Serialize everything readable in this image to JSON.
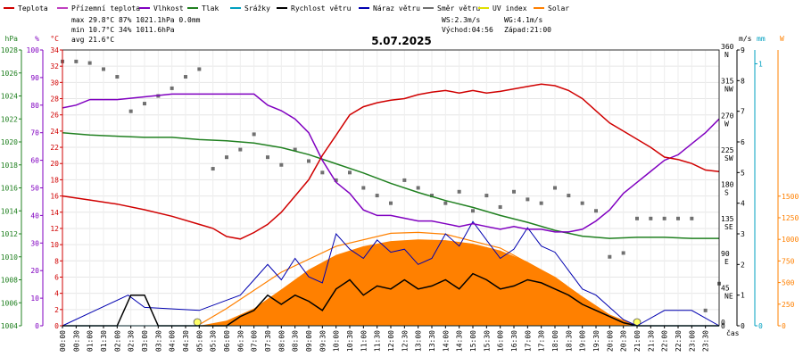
{
  "chart_data": {
    "type": "line",
    "title": "5.07.2025",
    "xlabel": "čas",
    "legend": [
      {
        "name": "Teplota",
        "color": "#d00000"
      },
      {
        "name": "Přízemní teplota",
        "color": "#c040c0"
      },
      {
        "name": "Vlhkost",
        "color": "#8000c0"
      },
      {
        "name": "Tlak",
        "color": "#208020"
      },
      {
        "name": "Srážky",
        "color": "#00a0c0"
      },
      {
        "name": "Rychlost větru",
        "color": "#000000"
      },
      {
        "name": "Náraz větru",
        "color": "#0000b0"
      },
      {
        "name": "Směr větru",
        "color": "#707070"
      },
      {
        "name": "UV index",
        "color": "#e0e000"
      },
      {
        "name": "Solar",
        "color": "#ff8000"
      }
    ],
    "stats": {
      "max_line": "max 29.8°C  87%  1021.1hPa   0.0mm",
      "min_line": "min 10.7°C  34%  1011.6hPa",
      "avg_line": "avg 21.6°C",
      "ws": "WS:2.3m/s",
      "wg": "WG:4.1m/s",
      "sunrise": "Východ:04:56",
      "sunset": "Západ:21:00"
    },
    "axes": {
      "hpa": {
        "label": "hPa",
        "ticks": [
          "1028",
          "1026",
          "1024",
          "1022",
          "1020",
          "1018",
          "1016",
          "1014",
          "1012",
          "1010",
          "1008",
          "1006",
          "1004"
        ]
      },
      "pct": {
        "label": "%",
        "ticks": [
          "100",
          "90",
          "80",
          "70",
          "60",
          "50",
          "40",
          "30",
          "20",
          "10",
          "0"
        ]
      },
      "degc": {
        "label": "°C",
        "ticks": [
          "34",
          "32",
          "30",
          "28",
          "26",
          "24",
          "22",
          "20",
          "18",
          "16",
          "14",
          "12",
          "10",
          "8",
          "6",
          "4",
          "2",
          "0"
        ]
      },
      "ms": {
        "label": "m/s",
        "ticks": [
          "9",
          "8",
          "7",
          "6",
          "5",
          "4",
          "3",
          "2",
          "1",
          "0"
        ]
      },
      "mm": {
        "label": "mm",
        "ticks": [
          "1",
          "0"
        ]
      },
      "w": {
        "label": "W",
        "ticks": [
          "1500",
          "1250",
          "1000",
          "750",
          "500",
          "250",
          "0"
        ]
      },
      "dir": {
        "ticks": [
          "360",
          "N",
          "315",
          "NW",
          "270",
          "W",
          "225",
          "SW",
          "180",
          "S",
          "135",
          "SE",
          "90",
          "E",
          "45",
          "NE",
          "0"
        ]
      }
    },
    "x_ticks": [
      "00:00",
      "00:30",
      "01:00",
      "01:30",
      "02:00",
      "02:30",
      "03:00",
      "03:30",
      "04:00",
      "04:30",
      "05:00",
      "05:30",
      "06:00",
      "06:30",
      "07:00",
      "07:30",
      "08:00",
      "08:30",
      "09:00",
      "09:30",
      "10:00",
      "10:30",
      "11:00",
      "11:30",
      "12:00",
      "12:30",
      "13:00",
      "13:30",
      "14:00",
      "14:30",
      "15:00",
      "15:30",
      "16:00",
      "16:30",
      "17:00",
      "17:30",
      "18:00",
      "18:30",
      "19:00",
      "19:30",
      "20:00",
      "20:30",
      "21:00",
      "21:30",
      "22:00",
      "22:30",
      "23:00",
      "23:30"
    ],
    "x_range_hours": [
      0,
      24
    ],
    "temp_c": [
      [
        0,
        16
      ],
      [
        1,
        15.5
      ],
      [
        2,
        15
      ],
      [
        3,
        14.3
      ],
      [
        4,
        13.5
      ],
      [
        5,
        12.5
      ],
      [
        5.5,
        12
      ],
      [
        6,
        11
      ],
      [
        6.5,
        10.7
      ],
      [
        7,
        11.5
      ],
      [
        7.5,
        12.5
      ],
      [
        8,
        14
      ],
      [
        8.5,
        16
      ],
      [
        9,
        18
      ],
      [
        9.5,
        21
      ],
      [
        10,
        23.5
      ],
      [
        10.5,
        26
      ],
      [
        11,
        27
      ],
      [
        11.5,
        27.5
      ],
      [
        12,
        27.8
      ],
      [
        12.5,
        28
      ],
      [
        13,
        28.5
      ],
      [
        13.5,
        28.8
      ],
      [
        14,
        29
      ],
      [
        14.5,
        28.7
      ],
      [
        15,
        29
      ],
      [
        15.5,
        28.7
      ],
      [
        16,
        28.9
      ],
      [
        16.5,
        29.2
      ],
      [
        17,
        29.5
      ],
      [
        17.5,
        29.8
      ],
      [
        18,
        29.6
      ],
      [
        18.5,
        29
      ],
      [
        19,
        28
      ],
      [
        19.5,
        26.5
      ],
      [
        20,
        25
      ],
      [
        20.5,
        24
      ],
      [
        21,
        23
      ],
      [
        21.5,
        22
      ],
      [
        22,
        20.8
      ],
      [
        22.5,
        20.5
      ],
      [
        23,
        20
      ],
      [
        23.5,
        19.2
      ],
      [
        24,
        19
      ]
    ],
    "humidity_pct": [
      [
        0,
        79
      ],
      [
        0.5,
        80
      ],
      [
        1,
        82
      ],
      [
        2,
        82
      ],
      [
        3,
        83
      ],
      [
        4,
        84
      ],
      [
        5,
        84
      ],
      [
        6,
        84
      ],
      [
        7,
        84
      ],
      [
        7.5,
        80
      ],
      [
        8,
        78
      ],
      [
        8.5,
        75
      ],
      [
        9,
        70
      ],
      [
        9.5,
        60
      ],
      [
        10,
        52
      ],
      [
        10.5,
        48
      ],
      [
        11,
        42
      ],
      [
        11.5,
        40
      ],
      [
        12,
        40
      ],
      [
        12.5,
        39
      ],
      [
        13,
        38
      ],
      [
        13.5,
        38
      ],
      [
        14,
        37
      ],
      [
        14.5,
        36
      ],
      [
        15,
        37
      ],
      [
        15.5,
        36
      ],
      [
        16,
        35
      ],
      [
        16.5,
        36
      ],
      [
        17,
        35
      ],
      [
        17.5,
        35
      ],
      [
        18,
        34
      ],
      [
        18.5,
        34
      ],
      [
        19,
        35
      ],
      [
        19.5,
        38
      ],
      [
        20,
        42
      ],
      [
        20.5,
        48
      ],
      [
        21,
        52
      ],
      [
        21.5,
        56
      ],
      [
        22,
        60
      ],
      [
        22.5,
        62
      ],
      [
        23,
        66
      ],
      [
        23.5,
        70
      ],
      [
        24,
        75
      ]
    ],
    "pressure_hpa": [
      [
        0,
        1020.8
      ],
      [
        1,
        1020.6
      ],
      [
        2,
        1020.5
      ],
      [
        3,
        1020.4
      ],
      [
        4,
        1020.4
      ],
      [
        5,
        1020.2
      ],
      [
        6,
        1020.1
      ],
      [
        7,
        1019.9
      ],
      [
        8,
        1019.5
      ],
      [
        9,
        1018.9
      ],
      [
        10,
        1018.1
      ],
      [
        11,
        1017.3
      ],
      [
        12,
        1016.4
      ],
      [
        13,
        1015.6
      ],
      [
        14,
        1014.9
      ],
      [
        15,
        1014.3
      ],
      [
        16,
        1013.6
      ],
      [
        17,
        1013
      ],
      [
        18,
        1012.3
      ],
      [
        19,
        1011.8
      ],
      [
        20,
        1011.6
      ],
      [
        21,
        1011.7
      ],
      [
        22,
        1011.7
      ],
      [
        23,
        1011.6
      ],
      [
        24,
        1011.6
      ]
    ],
    "wind_speed_ms": [
      [
        0,
        0
      ],
      [
        1,
        0
      ],
      [
        1.5,
        0
      ],
      [
        2,
        0
      ],
      [
        2.5,
        1
      ],
      [
        3,
        1
      ],
      [
        3.5,
        0
      ],
      [
        4,
        0
      ],
      [
        5,
        0
      ],
      [
        5.5,
        0
      ],
      [
        6,
        0
      ],
      [
        6.5,
        0.3
      ],
      [
        7,
        0.5
      ],
      [
        7.5,
        1
      ],
      [
        8,
        0.7
      ],
      [
        8.5,
        1
      ],
      [
        9,
        0.8
      ],
      [
        9.5,
        0.5
      ],
      [
        10,
        1.2
      ],
      [
        10.5,
        1.5
      ],
      [
        11,
        1
      ],
      [
        11.5,
        1.3
      ],
      [
        12,
        1.2
      ],
      [
        12.5,
        1.5
      ],
      [
        13,
        1.2
      ],
      [
        13.5,
        1.3
      ],
      [
        14,
        1.5
      ],
      [
        14.5,
        1.2
      ],
      [
        15,
        1.7
      ],
      [
        15.5,
        1.5
      ],
      [
        16,
        1.2
      ],
      [
        16.5,
        1.3
      ],
      [
        17,
        1.5
      ],
      [
        17.5,
        1.4
      ],
      [
        18,
        1.2
      ],
      [
        18.5,
        1
      ],
      [
        19,
        0.7
      ],
      [
        19.5,
        0.5
      ],
      [
        20,
        0.3
      ],
      [
        20.5,
        0.1
      ],
      [
        21,
        0
      ],
      [
        22,
        0
      ],
      [
        23,
        0
      ],
      [
        24,
        0
      ]
    ],
    "wind_gust_ms": [
      [
        0,
        0
      ],
      [
        1.2,
        0.5
      ],
      [
        2.4,
        1
      ],
      [
        3,
        0.6
      ],
      [
        5,
        0.5
      ],
      [
        6.5,
        1
      ],
      [
        7,
        1.5
      ],
      [
        7.5,
        2
      ],
      [
        8,
        1.5
      ],
      [
        8.5,
        2.2
      ],
      [
        9,
        1.6
      ],
      [
        9.5,
        1.4
      ],
      [
        10,
        3
      ],
      [
        10.5,
        2.5
      ],
      [
        11,
        2.2
      ],
      [
        11.5,
        2.8
      ],
      [
        12,
        2.4
      ],
      [
        12.5,
        2.5
      ],
      [
        13,
        2
      ],
      [
        13.5,
        2.2
      ],
      [
        14,
        3
      ],
      [
        14.5,
        2.6
      ],
      [
        15,
        3.4
      ],
      [
        15.5,
        2.8
      ],
      [
        16,
        2.2
      ],
      [
        16.5,
        2.5
      ],
      [
        17,
        3.2
      ],
      [
        17.5,
        2.6
      ],
      [
        18,
        2.4
      ],
      [
        18.5,
        1.8
      ],
      [
        19,
        1.2
      ],
      [
        19.5,
        1
      ],
      [
        20,
        0.6
      ],
      [
        20.5,
        0.2
      ],
      [
        21,
        0
      ],
      [
        22,
        0.5
      ],
      [
        23,
        0.5
      ],
      [
        24,
        0
      ]
    ],
    "wind_dir_deg": [
      [
        0,
        345
      ],
      [
        0.5,
        345
      ],
      [
        1,
        343
      ],
      [
        1.5,
        335
      ],
      [
        2,
        325
      ],
      [
        2.5,
        280
      ],
      [
        3,
        290
      ],
      [
        3.5,
        300
      ],
      [
        4,
        310
      ],
      [
        4.5,
        325
      ],
      [
        5,
        335
      ],
      [
        5.5,
        205
      ],
      [
        6,
        220
      ],
      [
        6.5,
        230
      ],
      [
        7,
        250
      ],
      [
        7.5,
        220
      ],
      [
        8,
        210
      ],
      [
        8.5,
        230
      ],
      [
        9,
        215
      ],
      [
        9.5,
        200
      ],
      [
        10,
        190
      ],
      [
        10.5,
        200
      ],
      [
        11,
        180
      ],
      [
        11.5,
        170
      ],
      [
        12,
        160
      ],
      [
        12.5,
        190
      ],
      [
        13,
        180
      ],
      [
        13.5,
        170
      ],
      [
        14,
        160
      ],
      [
        14.5,
        175
      ],
      [
        15,
        150
      ],
      [
        15.5,
        170
      ],
      [
        16,
        155
      ],
      [
        16.5,
        175
      ],
      [
        17,
        165
      ],
      [
        17.5,
        160
      ],
      [
        18,
        180
      ],
      [
        18.5,
        170
      ],
      [
        19,
        160
      ],
      [
        19.5,
        150
      ],
      [
        20,
        90
      ],
      [
        20.5,
        95
      ],
      [
        21,
        140
      ],
      [
        21.5,
        140
      ],
      [
        22,
        140
      ],
      [
        22.5,
        140
      ],
      [
        23,
        140
      ],
      [
        23.5,
        20
      ],
      [
        24,
        55
      ]
    ],
    "solar_w_m2": [
      [
        5,
        0
      ],
      [
        6,
        60
      ],
      [
        7,
        200
      ],
      [
        8,
        420
      ],
      [
        9,
        650
      ],
      [
        10,
        820
      ],
      [
        11,
        920
      ],
      [
        12,
        980
      ],
      [
        13,
        1000
      ],
      [
        14,
        990
      ],
      [
        15,
        950
      ],
      [
        16,
        870
      ],
      [
        17,
        740
      ],
      [
        18,
        560
      ],
      [
        19,
        340
      ],
      [
        20,
        130
      ],
      [
        21,
        0
      ]
    ],
    "solar_theoretical_w_m2": [
      [
        4.93,
        0
      ],
      [
        6,
        200
      ],
      [
        8,
        620
      ],
      [
        10,
        920
      ],
      [
        12,
        1070
      ],
      [
        13,
        1080
      ],
      [
        14,
        1060
      ],
      [
        16,
        900
      ],
      [
        18,
        560
      ],
      [
        19,
        330
      ],
      [
        20,
        120
      ],
      [
        21,
        0
      ]
    ],
    "rain_mm": [
      [
        0,
        0
      ],
      [
        24,
        0
      ]
    ]
  }
}
